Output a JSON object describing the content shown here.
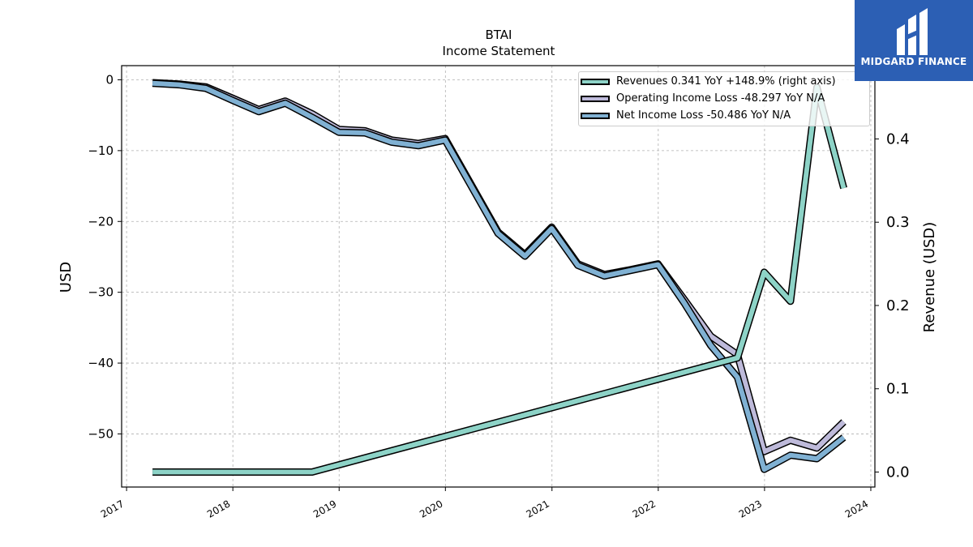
{
  "chart_data": {
    "type": "line",
    "title": "BTAI",
    "subtitle": "Income Statement",
    "ylabel_left": "USD",
    "ylabel_right": "Revenue (USD)",
    "x_ticks": [
      "2017",
      "2018",
      "2019",
      "2020",
      "2021",
      "2022",
      "2023",
      "2024"
    ],
    "y_left_ticks": [
      "0",
      "−10",
      "−20",
      "−30",
      "−40",
      "−50"
    ],
    "y_right_ticks": [
      "0.0",
      "0.1",
      "0.2",
      "0.3",
      "0.4"
    ],
    "ylim_left": [
      -57.5,
      2
    ],
    "ylim_right": [
      -0.018,
      0.488
    ],
    "xlim": [
      "2016-12-15",
      "2024-01-15"
    ],
    "grid": true,
    "legend_position": "top-right",
    "series": [
      {
        "name": "Revenues  0.341 YoY +148.9% (right axis)",
        "axis": "right",
        "color": "#8dd3c7",
        "points": [
          [
            "2017-03-31",
            0.0
          ],
          [
            "2018-09-30",
            0.0
          ],
          [
            "2022-09-30",
            0.137
          ],
          [
            "2022-12-31",
            0.24
          ],
          [
            "2023-03-31",
            0.205
          ],
          [
            "2023-06-30",
            0.462
          ],
          [
            "2023-09-30",
            0.341
          ]
        ]
      },
      {
        "name": "Operating Income Loss  -48.297 YoY N/A",
        "axis": "left",
        "color": "#bebada",
        "points": [
          [
            "2017-03-31",
            -0.4
          ],
          [
            "2017-06-30",
            -0.6
          ],
          [
            "2017-09-30",
            -1.0
          ],
          [
            "2017-12-31",
            -2.6
          ],
          [
            "2018-03-31",
            -4.2
          ],
          [
            "2018-06-30",
            -3.0
          ],
          [
            "2018-09-30",
            -4.8
          ],
          [
            "2018-12-31",
            -7.0
          ],
          [
            "2019-03-31",
            -7.2
          ],
          [
            "2019-06-30",
            -8.5
          ],
          [
            "2019-09-30",
            -9.0
          ],
          [
            "2019-12-31",
            -8.3
          ],
          [
            "2020-06-30",
            -21.5
          ],
          [
            "2020-09-30",
            -24.7
          ],
          [
            "2020-12-31",
            -20.8
          ],
          [
            "2021-03-31",
            -26.0
          ],
          [
            "2021-06-30",
            -27.5
          ],
          [
            "2021-09-30",
            -26.8
          ],
          [
            "2021-12-31",
            -26.0
          ],
          [
            "2022-03-31",
            -31.0
          ],
          [
            "2022-06-30",
            -36.2
          ],
          [
            "2022-09-30",
            -38.8
          ],
          [
            "2022-12-31",
            -52.5
          ],
          [
            "2023-03-31",
            -50.9
          ],
          [
            "2023-06-30",
            -52.0
          ],
          [
            "2023-09-30",
            -48.3
          ]
        ]
      },
      {
        "name": "Net Income Loss  -50.486 YoY N/A",
        "axis": "left",
        "color": "#80b1d3",
        "points": [
          [
            "2017-03-31",
            -0.5
          ],
          [
            "2017-06-30",
            -0.7
          ],
          [
            "2017-09-30",
            -1.2
          ],
          [
            "2017-12-31",
            -2.9
          ],
          [
            "2018-03-31",
            -4.5
          ],
          [
            "2018-06-30",
            -3.3
          ],
          [
            "2018-09-30",
            -5.3
          ],
          [
            "2018-12-31",
            -7.4
          ],
          [
            "2019-03-31",
            -7.5
          ],
          [
            "2019-06-30",
            -8.8
          ],
          [
            "2019-09-30",
            -9.3
          ],
          [
            "2019-12-31",
            -8.5
          ],
          [
            "2020-06-30",
            -21.7
          ],
          [
            "2020-09-30",
            -24.9
          ],
          [
            "2020-12-31",
            -21.0
          ],
          [
            "2021-03-31",
            -26.2
          ],
          [
            "2021-06-30",
            -27.7
          ],
          [
            "2021-09-30",
            -26.9
          ],
          [
            "2021-12-31",
            -26.1
          ],
          [
            "2022-03-31",
            -31.5
          ],
          [
            "2022-06-30",
            -37.5
          ],
          [
            "2022-09-30",
            -42.0
          ],
          [
            "2022-12-31",
            -55.0
          ],
          [
            "2023-03-31",
            -53.0
          ],
          [
            "2023-06-30",
            -53.5
          ],
          [
            "2023-09-30",
            -50.5
          ]
        ]
      }
    ]
  },
  "logo": {
    "text": "MIDGARD FINANCE",
    "background": "#2c5fb4"
  }
}
